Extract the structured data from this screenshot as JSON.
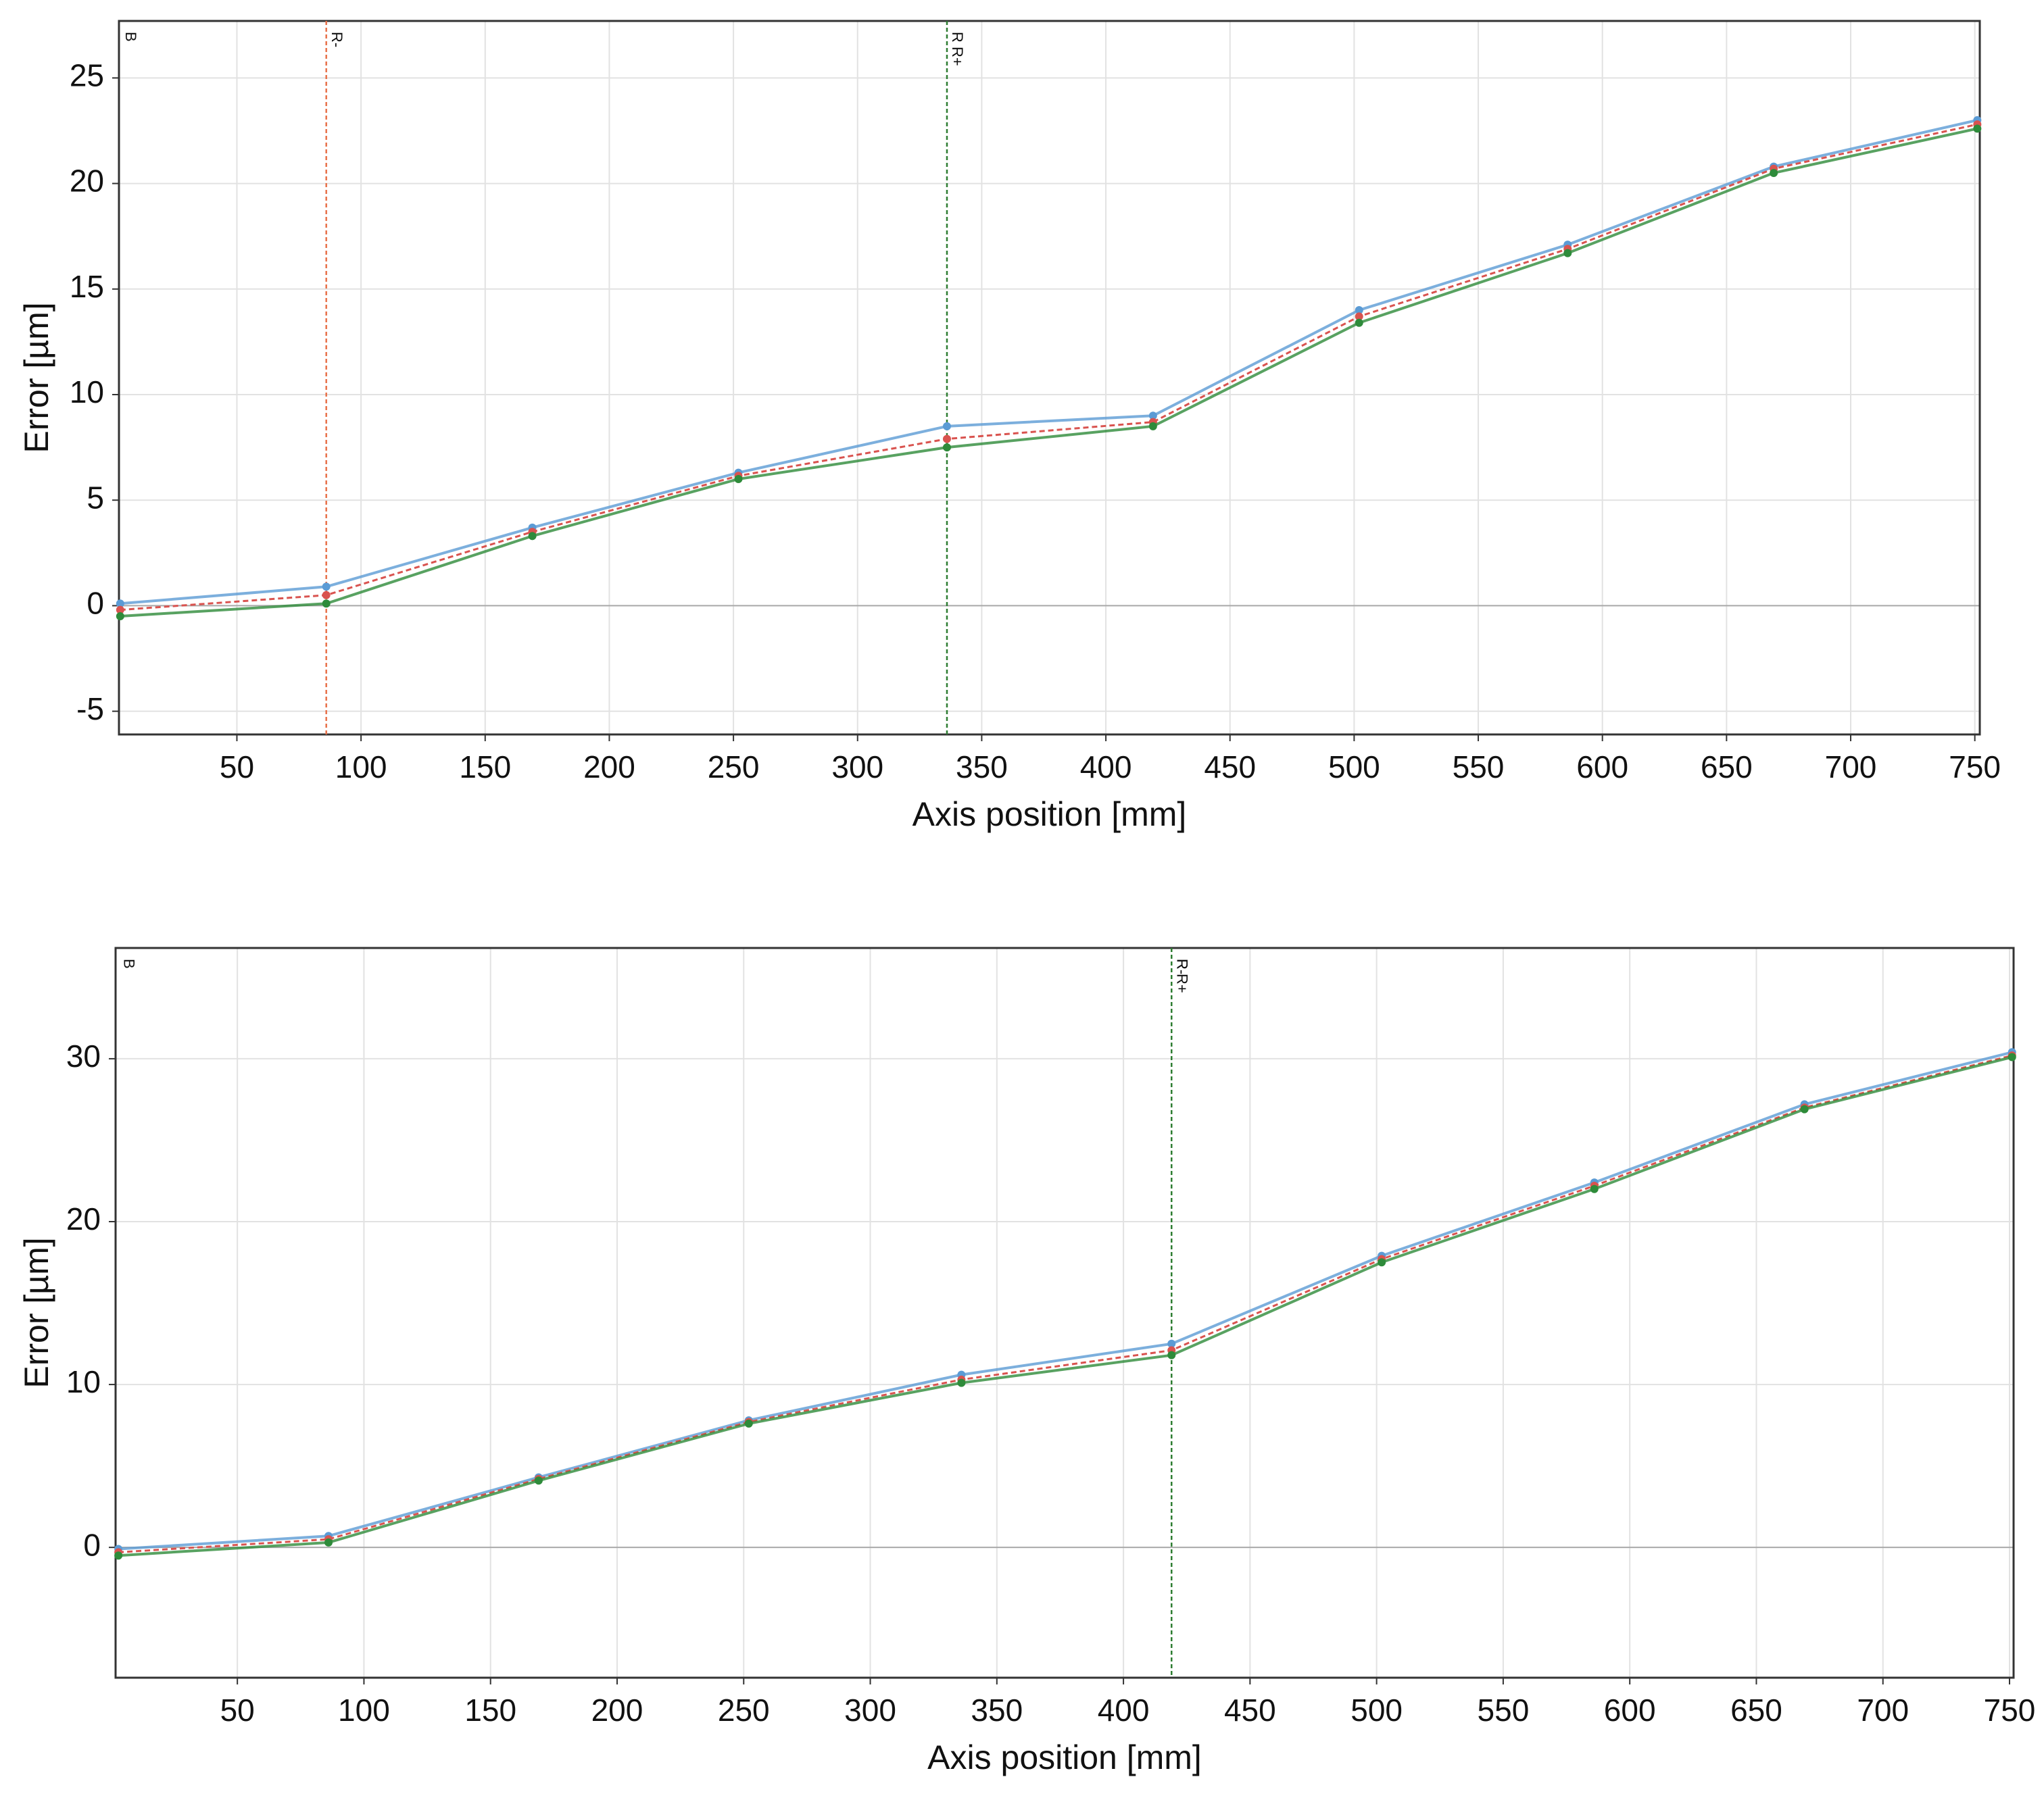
{
  "chart_data": [
    {
      "type": "line",
      "xlabel": "Axis position [mm]",
      "ylabel": "Error [µm]",
      "x": [
        3,
        86,
        169,
        252,
        336,
        419,
        502,
        586,
        669,
        751
      ],
      "series": [
        {
          "color": "#5b9bd5",
          "values": [
            0.1,
            0.9,
            3.7,
            6.3,
            8.5,
            9.0,
            14.0,
            17.1,
            20.8,
            23.0
          ]
        },
        {
          "color": "#d9534f",
          "values": [
            -0.2,
            0.5,
            3.5,
            6.15,
            7.9,
            8.7,
            13.7,
            16.9,
            20.7,
            22.8
          ]
        },
        {
          "color": "#2e8b3a",
          "values": [
            -0.5,
            0.1,
            3.3,
            6.0,
            7.5,
            8.5,
            13.4,
            16.7,
            20.5,
            22.6
          ]
        }
      ],
      "xlim": [
        2.5,
        752
      ],
      "ylim": [
        -6.1,
        27.7
      ],
      "xticks": [
        50,
        100,
        150,
        200,
        250,
        300,
        350,
        400,
        450,
        500,
        550,
        600,
        650,
        700,
        750
      ],
      "yticks": [
        -5,
        0,
        5,
        10,
        15,
        20,
        25
      ],
      "grid": true,
      "markers": [
        {
          "x": 3,
          "label": "B",
          "color": "none"
        },
        {
          "x": 86,
          "label": "R-",
          "color": "#e8714a"
        },
        {
          "x": 336,
          "label": "R R+",
          "color": "#2e7d32"
        }
      ]
    },
    {
      "type": "line",
      "xlabel": "Axis position [mm]",
      "ylabel": "Error [µm]",
      "x": [
        3,
        86,
        169,
        252,
        336,
        419,
        502,
        586,
        669,
        751
      ],
      "series": [
        {
          "color": "#5b9bd5",
          "values": [
            -0.1,
            0.7,
            4.3,
            7.8,
            10.6,
            12.5,
            17.9,
            22.4,
            27.2,
            30.4
          ]
        },
        {
          "color": "#d9534f",
          "values": [
            -0.3,
            0.5,
            4.2,
            7.7,
            10.3,
            12.1,
            17.7,
            22.2,
            27.0,
            30.2
          ]
        },
        {
          "color": "#2e8b3a",
          "values": [
            -0.5,
            0.3,
            4.1,
            7.6,
            10.1,
            11.8,
            17.5,
            22.0,
            26.9,
            30.1
          ]
        }
      ],
      "xlim": [
        1.9,
        751.6
      ],
      "ylim": [
        -8.0,
        36.8
      ],
      "xticks": [
        50,
        100,
        150,
        200,
        250,
        300,
        350,
        400,
        450,
        500,
        550,
        600,
        650,
        700,
        750
      ],
      "yticks": [
        0,
        10,
        20,
        30
      ],
      "grid": true,
      "markers": [
        {
          "x": 3,
          "label": "B",
          "color": "none"
        },
        {
          "x": 419,
          "label": "R R+",
          "color": "#2e7d32"
        },
        {
          "x": 419,
          "label": "R-",
          "color": "#2e7d32"
        }
      ]
    }
  ]
}
